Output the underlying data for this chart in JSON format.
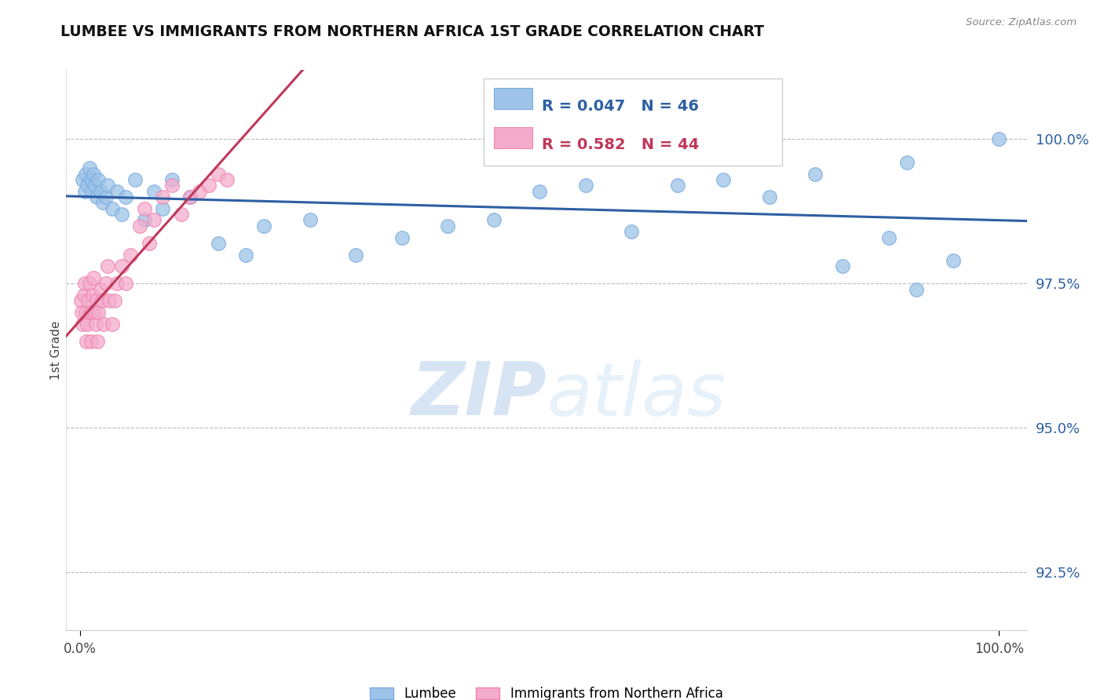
{
  "title": "LUMBEE VS IMMIGRANTS FROM NORTHERN AFRICA 1ST GRADE CORRELATION CHART",
  "source_text": "Source: ZipAtlas.com",
  "ylabel": "1st Grade",
  "watermark_zip": "ZIP",
  "watermark_atlas": "atlas",
  "x_ticks": [
    0,
    100
  ],
  "x_tick_labels": [
    "0.0%",
    "100.0%"
  ],
  "y_ticks": [
    92.5,
    95.0,
    97.5,
    100.0
  ],
  "y_tick_labels": [
    "92.5%",
    "95.0%",
    "97.5%",
    "100.0%"
  ],
  "y_min": 91.5,
  "y_max": 101.2,
  "x_min": -1.5,
  "x_max": 103.0,
  "blue_R": 0.047,
  "blue_N": 46,
  "pink_R": 0.582,
  "pink_N": 44,
  "blue_color": "#9DC3E8",
  "pink_color": "#F4ACCD",
  "blue_edge_color": "#7AABDF",
  "pink_edge_color": "#EF85B0",
  "blue_line_color": "#2E5FA3",
  "pink_line_color": "#C0385A",
  "legend_label_blue": "Lumbee",
  "legend_label_pink": "Immigrants from Northern Africa",
  "blue_x": [
    0.3,
    0.5,
    0.6,
    0.8,
    1.0,
    1.2,
    1.3,
    1.5,
    1.6,
    1.8,
    2.0,
    2.2,
    2.5,
    2.8,
    3.0,
    3.5,
    4.0,
    4.5,
    5.0,
    6.0,
    7.0,
    8.0,
    9.0,
    10.0,
    12.0,
    15.0,
    18.0,
    20.0,
    25.0,
    30.0,
    35.0,
    40.0,
    45.0,
    50.0,
    55.0,
    60.0,
    65.0,
    70.0,
    75.0,
    80.0,
    83.0,
    88.0,
    90.0,
    91.0,
    95.0,
    100.0
  ],
  "blue_y": [
    99.3,
    99.1,
    99.4,
    99.2,
    99.5,
    99.3,
    99.1,
    99.4,
    99.2,
    99.0,
    99.3,
    99.1,
    98.9,
    99.0,
    99.2,
    98.8,
    99.1,
    98.7,
    99.0,
    99.3,
    98.6,
    99.1,
    98.8,
    99.3,
    99.0,
    98.2,
    98.0,
    98.5,
    98.6,
    98.0,
    98.3,
    98.5,
    98.6,
    99.1,
    99.2,
    98.4,
    99.2,
    99.3,
    99.0,
    99.4,
    97.8,
    98.3,
    99.6,
    97.4,
    97.9,
    100.0
  ],
  "pink_x": [
    0.1,
    0.2,
    0.3,
    0.4,
    0.5,
    0.6,
    0.7,
    0.8,
    0.9,
    1.0,
    1.1,
    1.2,
    1.3,
    1.4,
    1.5,
    1.6,
    1.7,
    1.8,
    1.9,
    2.0,
    2.2,
    2.4,
    2.6,
    2.8,
    3.0,
    3.2,
    3.5,
    3.8,
    4.0,
    4.5,
    5.0,
    5.5,
    6.5,
    7.0,
    7.5,
    8.0,
    9.0,
    10.0,
    11.0,
    12.0,
    13.0,
    14.0,
    15.0,
    16.0
  ],
  "pink_y": [
    97.2,
    97.0,
    96.8,
    97.3,
    97.5,
    97.0,
    96.5,
    96.8,
    97.2,
    97.5,
    97.0,
    96.5,
    97.0,
    97.3,
    97.6,
    97.0,
    96.8,
    97.2,
    96.5,
    97.0,
    97.4,
    97.2,
    96.8,
    97.5,
    97.8,
    97.2,
    96.8,
    97.2,
    97.5,
    97.8,
    97.5,
    98.0,
    98.5,
    98.8,
    98.2,
    98.6,
    99.0,
    99.2,
    98.7,
    99.0,
    99.1,
    99.2,
    99.4,
    99.3
  ]
}
